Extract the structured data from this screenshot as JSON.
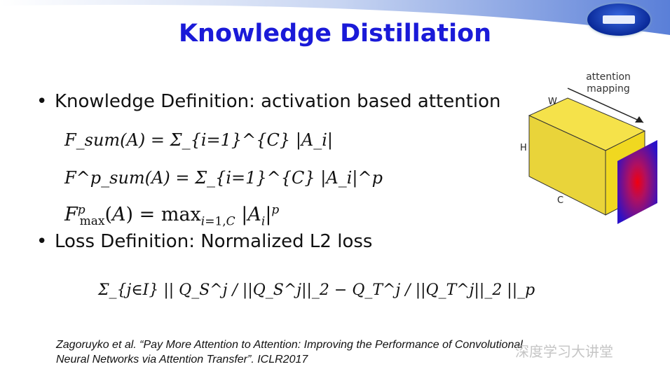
{
  "slide": {
    "title": "Knowledge Distillation",
    "bullets": [
      "Knowledge Definition: activation based attention",
      "Loss Definition: Normalized L2 loss"
    ],
    "bullet_symbol": "•",
    "formulas": {
      "f_sum": "F_sum(A) = Σ_{i=1}^{C} |A_i|",
      "f_sum_p": "F^p_sum(A) = Σ_{i=1}^{C} |A_i|^p",
      "f_max_p": "F^p_max(A) = max_{i=1,C} |A_i|^p",
      "loss": "Σ_{j∈I} || Q_S^j / ||Q_S^j||_2 − Q_T^j / ||Q_T^j||_2 ||_p"
    },
    "diagram": {
      "arrow_label_1": "attention",
      "arrow_label_2": "mapping",
      "label_w": "W",
      "label_h": "H",
      "label_c": "C"
    },
    "citation_line1": "Zagoruyko et al. “Pay More Attention to Attention: Improving the Performance of Convolutional",
    "citation_line2": "Neural Networks via Attention Transfer”. ICLR2017",
    "watermark": "深度学习大讲堂",
    "colors": {
      "title": "#1a1ad8",
      "banner": "#5a7fd8",
      "cube": "#f0dc3a"
    }
  }
}
